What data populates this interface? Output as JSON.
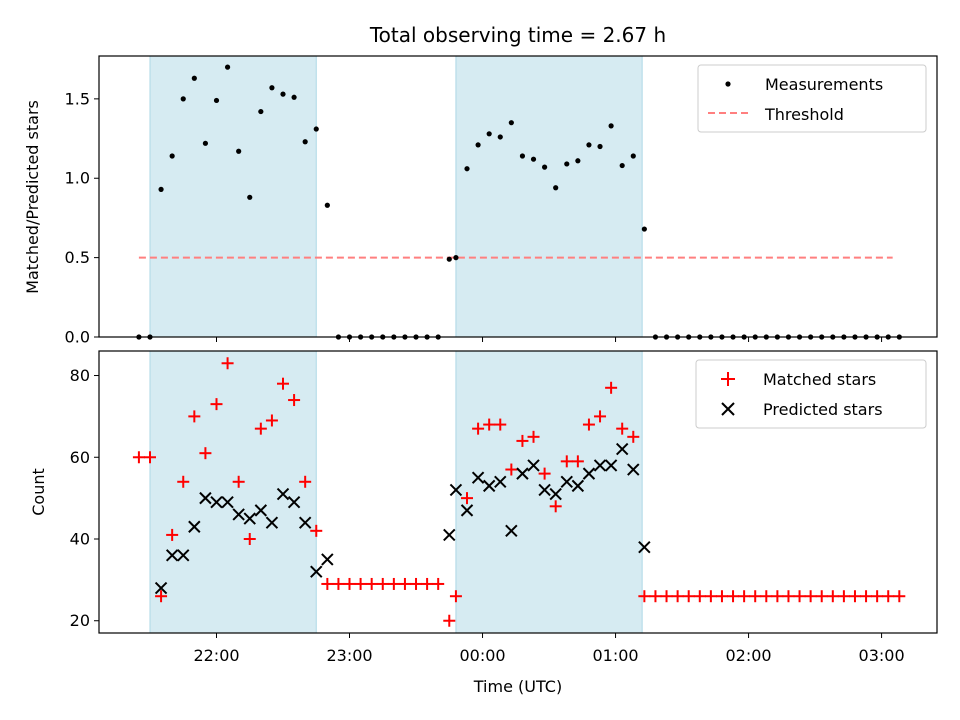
{
  "chart_data": [
    {
      "type": "scatter",
      "title": "Total observing time = 2.67 h",
      "ylabel": "Matched/Predicted stars",
      "xlabel": "",
      "ylim": [
        0,
        1.77
      ],
      "yticks": [
        "0.0",
        "0.5",
        "1.0",
        "1.5"
      ],
      "ytick_values": [
        0,
        0.5,
        1.0,
        1.5
      ],
      "shaded_intervals": [
        [
          "21:30",
          "22:45"
        ],
        [
          "23:48",
          "01:12"
        ]
      ],
      "shade_color": "#add8e6",
      "legend": {
        "placement": "top-right",
        "entries": [
          "Measurements",
          "Threshold"
        ]
      },
      "threshold": {
        "name": "Threshold",
        "value": 0.5,
        "x_range": [
          "21:25",
          "03:05"
        ],
        "color": "#ff7f7f"
      },
      "series": [
        {
          "name": "Measurements",
          "color": "#000000",
          "points": [
            [
              "21:25",
              0
            ],
            [
              "21:30",
              0
            ],
            [
              "21:35",
              0.93
            ],
            [
              "21:40",
              1.14
            ],
            [
              "21:45",
              1.5
            ],
            [
              "21:50",
              1.63
            ],
            [
              "21:55",
              1.22
            ],
            [
              "22:00",
              1.49
            ],
            [
              "22:05",
              1.7
            ],
            [
              "22:10",
              1.17
            ],
            [
              "22:15",
              0.88
            ],
            [
              "22:20",
              1.42
            ],
            [
              "22:25",
              1.57
            ],
            [
              "22:30",
              1.53
            ],
            [
              "22:35",
              1.51
            ],
            [
              "22:40",
              1.23
            ],
            [
              "22:45",
              1.31
            ],
            [
              "22:50",
              0.83
            ],
            [
              "22:55",
              0
            ],
            [
              "23:00",
              0
            ],
            [
              "23:05",
              0
            ],
            [
              "23:10",
              0
            ],
            [
              "23:15",
              0
            ],
            [
              "23:20",
              0
            ],
            [
              "23:25",
              0
            ],
            [
              "23:30",
              0
            ],
            [
              "23:35",
              0
            ],
            [
              "23:40",
              0
            ],
            [
              "23:45",
              0.49
            ],
            [
              "23:48",
              0.5
            ],
            [
              "23:53",
              1.06
            ],
            [
              "23:58",
              1.21
            ],
            [
              "00:03",
              1.28
            ],
            [
              "00:08",
              1.26
            ],
            [
              "00:13",
              1.35
            ],
            [
              "00:18",
              1.14
            ],
            [
              "00:23",
              1.12
            ],
            [
              "00:28",
              1.07
            ],
            [
              "00:33",
              0.94
            ],
            [
              "00:38",
              1.09
            ],
            [
              "00:43",
              1.11
            ],
            [
              "00:48",
              1.21
            ],
            [
              "00:53",
              1.2
            ],
            [
              "00:58",
              1.33
            ],
            [
              "01:03",
              1.08
            ],
            [
              "01:08",
              1.14
            ],
            [
              "01:13",
              0.68
            ],
            [
              "01:18",
              0
            ],
            [
              "01:23",
              0
            ],
            [
              "01:28",
              0
            ],
            [
              "01:33",
              0
            ],
            [
              "01:38",
              0
            ],
            [
              "01:43",
              0
            ],
            [
              "01:48",
              0
            ],
            [
              "01:53",
              0
            ],
            [
              "01:58",
              0
            ],
            [
              "02:03",
              0
            ],
            [
              "02:08",
              0
            ],
            [
              "02:13",
              0
            ],
            [
              "02:18",
              0
            ],
            [
              "02:23",
              0
            ],
            [
              "02:28",
              0
            ],
            [
              "02:33",
              0
            ],
            [
              "02:38",
              0
            ],
            [
              "02:43",
              0
            ],
            [
              "02:48",
              0
            ],
            [
              "02:53",
              0
            ],
            [
              "02:58",
              0
            ],
            [
              "03:03",
              0
            ],
            [
              "03:08",
              0
            ]
          ]
        }
      ]
    },
    {
      "type": "scatter",
      "xlabel": "Time (UTC)",
      "ylabel": "Count",
      "ylim": [
        17,
        86
      ],
      "yticks": [
        "20",
        "40",
        "60",
        "80"
      ],
      "ytick_values": [
        20,
        40,
        60,
        80
      ],
      "xticks": [
        "22:00",
        "23:00",
        "00:00",
        "01:00",
        "02:00",
        "03:00"
      ],
      "shaded_intervals": [
        [
          "21:30",
          "22:45"
        ],
        [
          "23:48",
          "01:12"
        ]
      ],
      "shade_color": "#add8e6",
      "legend": {
        "placement": "top-right",
        "entries": [
          "Matched stars",
          "Predicted stars"
        ]
      },
      "series": [
        {
          "name": "Matched stars",
          "marker": "plus",
          "color": "#ff0000",
          "points": [
            [
              "21:25",
              60
            ],
            [
              "21:30",
              60
            ],
            [
              "21:35",
              26
            ],
            [
              "21:40",
              41
            ],
            [
              "21:45",
              54
            ],
            [
              "21:50",
              70
            ],
            [
              "21:55",
              61
            ],
            [
              "22:00",
              73
            ],
            [
              "22:05",
              83
            ],
            [
              "22:10",
              54
            ],
            [
              "22:15",
              40
            ],
            [
              "22:20",
              67
            ],
            [
              "22:25",
              69
            ],
            [
              "22:30",
              78
            ],
            [
              "22:35",
              74
            ],
            [
              "22:40",
              54
            ],
            [
              "22:45",
              42
            ],
            [
              "22:50",
              29
            ],
            [
              "22:55",
              29
            ],
            [
              "23:00",
              29
            ],
            [
              "23:05",
              29
            ],
            [
              "23:10",
              29
            ],
            [
              "23:15",
              29
            ],
            [
              "23:20",
              29
            ],
            [
              "23:25",
              29
            ],
            [
              "23:30",
              29
            ],
            [
              "23:35",
              29
            ],
            [
              "23:40",
              29
            ],
            [
              "23:45",
              20
            ],
            [
              "23:48",
              26
            ],
            [
              "23:53",
              50
            ],
            [
              "23:58",
              67
            ],
            [
              "00:03",
              68
            ],
            [
              "00:08",
              68
            ],
            [
              "00:13",
              57
            ],
            [
              "00:18",
              64
            ],
            [
              "00:23",
              65
            ],
            [
              "00:28",
              56
            ],
            [
              "00:33",
              48
            ],
            [
              "00:38",
              59
            ],
            [
              "00:43",
              59
            ],
            [
              "00:48",
              68
            ],
            [
              "00:53",
              70
            ],
            [
              "00:58",
              77
            ],
            [
              "01:03",
              67
            ],
            [
              "01:08",
              65
            ],
            [
              "01:13",
              26
            ],
            [
              "01:18",
              26
            ],
            [
              "01:23",
              26
            ],
            [
              "01:28",
              26
            ],
            [
              "01:33",
              26
            ],
            [
              "01:38",
              26
            ],
            [
              "01:43",
              26
            ],
            [
              "01:48",
              26
            ],
            [
              "01:53",
              26
            ],
            [
              "01:58",
              26
            ],
            [
              "02:03",
              26
            ],
            [
              "02:08",
              26
            ],
            [
              "02:13",
              26
            ],
            [
              "02:18",
              26
            ],
            [
              "02:23",
              26
            ],
            [
              "02:28",
              26
            ],
            [
              "02:33",
              26
            ],
            [
              "02:38",
              26
            ],
            [
              "02:43",
              26
            ],
            [
              "02:48",
              26
            ],
            [
              "02:53",
              26
            ],
            [
              "02:58",
              26
            ],
            [
              "03:03",
              26
            ],
            [
              "03:08",
              26
            ]
          ]
        },
        {
          "name": "Predicted stars",
          "marker": "x",
          "color": "#000000",
          "points": [
            [
              "21:35",
              28
            ],
            [
              "21:40",
              36
            ],
            [
              "21:45",
              36
            ],
            [
              "21:50",
              43
            ],
            [
              "21:55",
              50
            ],
            [
              "22:00",
              49
            ],
            [
              "22:05",
              49
            ],
            [
              "22:10",
              46
            ],
            [
              "22:15",
              45
            ],
            [
              "22:20",
              47
            ],
            [
              "22:25",
              44
            ],
            [
              "22:30",
              51
            ],
            [
              "22:35",
              49
            ],
            [
              "22:40",
              44
            ],
            [
              "22:45",
              32
            ],
            [
              "22:50",
              35
            ],
            [
              "23:45",
              41
            ],
            [
              "23:48",
              52
            ],
            [
              "23:53",
              47
            ],
            [
              "23:58",
              55
            ],
            [
              "00:03",
              53
            ],
            [
              "00:08",
              54
            ],
            [
              "00:13",
              42
            ],
            [
              "00:18",
              56
            ],
            [
              "00:23",
              58
            ],
            [
              "00:28",
              52
            ],
            [
              "00:33",
              51
            ],
            [
              "00:38",
              54
            ],
            [
              "00:43",
              53
            ],
            [
              "00:48",
              56
            ],
            [
              "00:53",
              58
            ],
            [
              "00:58",
              58
            ],
            [
              "01:03",
              62
            ],
            [
              "01:08",
              57
            ],
            [
              "01:13",
              38
            ]
          ]
        }
      ]
    }
  ]
}
